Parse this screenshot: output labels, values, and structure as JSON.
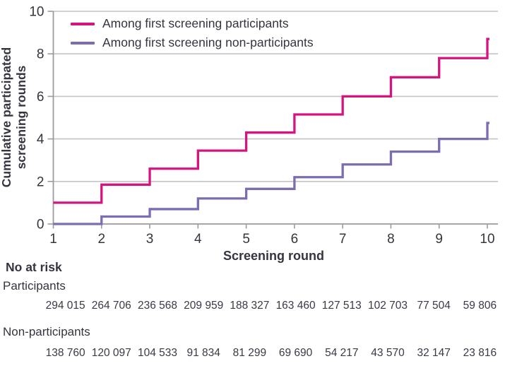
{
  "chart_data": {
    "type": "line",
    "step": true,
    "title": "",
    "xlabel": "Screening round",
    "ylabel": "Cumulative participated screening rounds",
    "ylabel_lines": [
      "Cumulative participated",
      "screening rounds"
    ],
    "x": [
      1,
      2,
      3,
      4,
      5,
      6,
      7,
      8,
      9,
      10
    ],
    "series": [
      {
        "name": "Among first screening participants",
        "color": "#d6147f",
        "values": [
          1.0,
          1.85,
          2.6,
          3.45,
          4.3,
          5.15,
          6.0,
          6.9,
          7.8,
          8.7
        ]
      },
      {
        "name": "Among first screening non-participants",
        "color": "#7c6cb4",
        "values": [
          0,
          0.35,
          0.7,
          1.2,
          1.65,
          2.2,
          2.8,
          3.4,
          4.0,
          4.75
        ]
      }
    ],
    "xlim": [
      1,
      10
    ],
    "ylim": [
      0,
      10
    ],
    "x_ticks": [
      1,
      2,
      3,
      4,
      5,
      6,
      7,
      8,
      9,
      10
    ],
    "y_ticks": [
      0,
      2,
      4,
      6,
      8,
      10
    ],
    "grid": "horizontal",
    "legend_position": "top-left"
  },
  "at_risk": {
    "heading": "No at risk",
    "rows": [
      {
        "label": "Participants",
        "values": [
          "294 015",
          "264 706",
          "236 568",
          "209 959",
          "188 327",
          "163 460",
          "127 513",
          "102 703",
          "77 504",
          "59 806"
        ]
      },
      {
        "label": "Non-participants",
        "values": [
          "138 760",
          "120 097",
          "104 533",
          "91 834",
          "81 299",
          "69 690",
          "54 217",
          "43 570",
          "32 147",
          "23 816"
        ]
      }
    ]
  },
  "colors": {
    "participants_line": "#d6147f",
    "non_participants_line": "#7c6cb4",
    "gridline": "#c4c3c7",
    "axis": "#9b9aa0",
    "text": "#35343f"
  }
}
